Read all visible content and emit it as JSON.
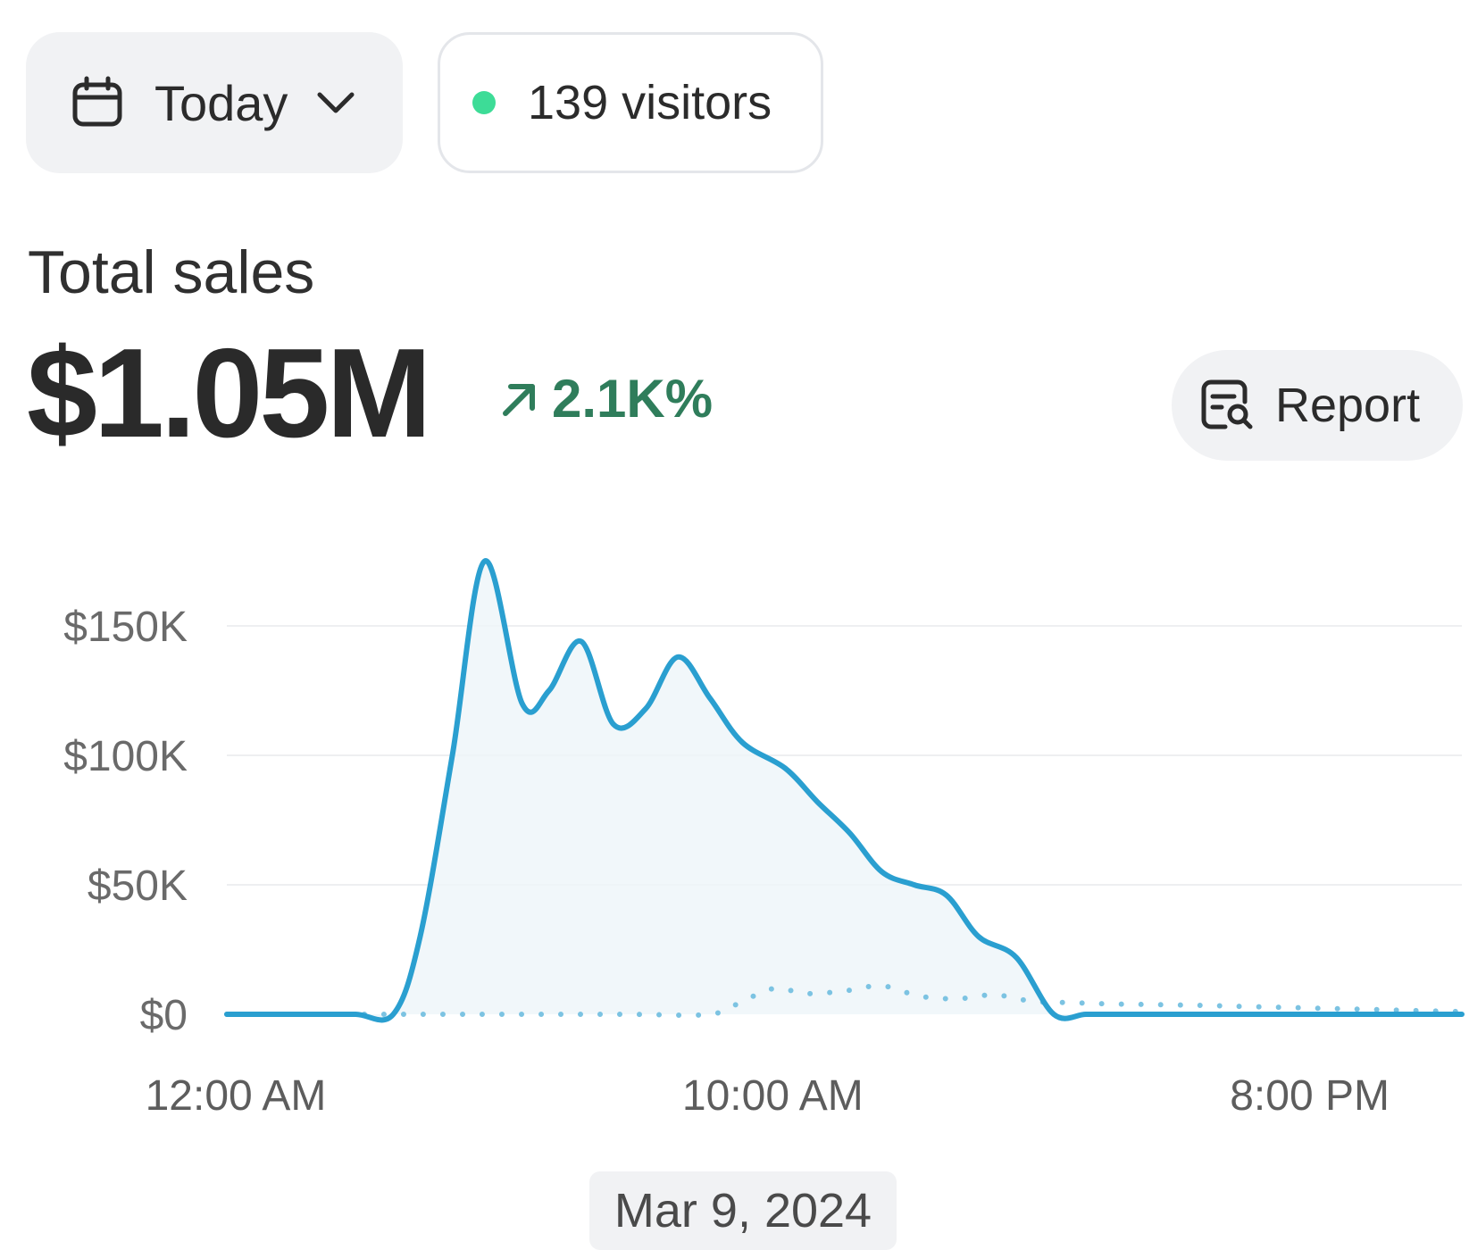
{
  "date_range": {
    "label": "Today",
    "icon": "calendar-icon",
    "dropdown_icon": "chevron-down-icon"
  },
  "visitors": {
    "label": "139 visitors",
    "status_color": "#3ddc97"
  },
  "metric": {
    "title": "Total sales",
    "value": "$1.05M",
    "change": "2.1K%",
    "change_icon": "arrow-up-right-icon",
    "change_color": "#2f7d5b"
  },
  "report_button": {
    "label": "Report",
    "icon": "report-search-icon"
  },
  "tooltip_date": "Mar 9, 2024",
  "chart_data": {
    "type": "line",
    "title": "Total sales",
    "y_tick_labels": [
      "$0",
      "$50K",
      "$100K",
      "$150K"
    ],
    "y_ticks": [
      0,
      50000,
      100000,
      150000
    ],
    "x_tick_labels": [
      "12:00 AM",
      "10:00 AM",
      "8:00 PM"
    ],
    "x_ticks": [
      0,
      10,
      20
    ],
    "ylim": [
      0,
      180000
    ],
    "xlim": [
      0,
      23
    ],
    "grid": true,
    "series": [
      {
        "name": "current",
        "style": "solid",
        "color": "#2a9fd0",
        "x": [
          0,
          0.8,
          1.6,
          2.4,
          3.1,
          3.6,
          4.2,
          4.8,
          5.5,
          6.0,
          6.6,
          7.2,
          7.8,
          8.4,
          9.0,
          9.6,
          10.4,
          11.0,
          11.6,
          12.2,
          12.8,
          13.4,
          14.0,
          14.7,
          15.4,
          16.0,
          16.6,
          17.2,
          18,
          19,
          20,
          21,
          22,
          23
        ],
        "values": [
          0,
          0,
          0,
          0,
          0,
          30000,
          100000,
          175000,
          120000,
          125000,
          144000,
          112000,
          118000,
          138000,
          122000,
          105000,
          95000,
          82000,
          70000,
          55000,
          50000,
          46000,
          30000,
          22000,
          0,
          0,
          0,
          0,
          0,
          0,
          0,
          0,
          0,
          0
        ]
      },
      {
        "name": "comparison",
        "style": "dotted",
        "color": "#7cc3e2",
        "x": [
          0,
          2,
          3.1,
          4.5,
          6,
          7.5,
          9,
          9.6,
          10.2,
          10.8,
          11.5,
          12.2,
          12.9,
          13.6,
          14.3,
          15.0,
          15.7,
          16.5,
          18,
          19,
          20,
          21,
          22,
          23
        ],
        "values": [
          0,
          0,
          0,
          0,
          0,
          0,
          0,
          5000,
          10000,
          8000,
          9000,
          11000,
          7000,
          6000,
          7500,
          5000,
          4500,
          4000,
          3500,
          3000,
          2500,
          2000,
          1500,
          1000
        ]
      }
    ]
  }
}
